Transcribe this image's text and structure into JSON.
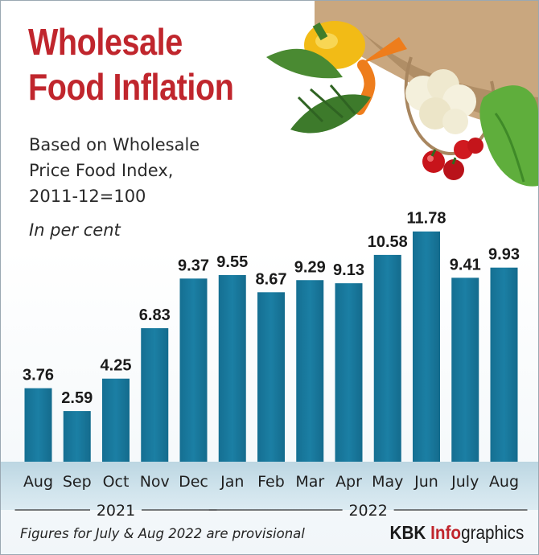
{
  "title_lines": [
    "Wholesale",
    "Food Inflation"
  ],
  "subtitle_lines": [
    "Based on Wholesale",
    "Price Food Index,",
    "2011-12=100"
  ],
  "unit_label": "In per cent",
  "footnote": "Figures for July & Aug 2022 are provisional",
  "brand": {
    "part1": "KBK ",
    "part2": "Info",
    "part3": "graphics"
  },
  "colors": {
    "title": "#c0262d",
    "bar": "#1b7fa4",
    "text": "#1a1a1a"
  },
  "chart_data": {
    "type": "bar",
    "categories": [
      "Aug",
      "Sep",
      "Oct",
      "Nov",
      "Dec",
      "Jan",
      "Feb",
      "Mar",
      "Apr",
      "May",
      "Jun",
      "July",
      "Aug"
    ],
    "values": [
      3.76,
      2.59,
      4.25,
      6.83,
      9.37,
      9.55,
      8.67,
      9.29,
      9.13,
      10.58,
      11.78,
      9.41,
      9.93
    ],
    "value_labels": [
      "3.76",
      "2.59",
      "4.25",
      "6.83",
      "9.37",
      "9.55",
      "8.67",
      "9.29",
      "9.13",
      "10.58",
      "11.78",
      "9.41",
      "9.93"
    ],
    "year_groups": [
      {
        "label": "2021",
        "first": 0,
        "last": 4
      },
      {
        "label": "2022",
        "first": 5,
        "last": 12
      }
    ],
    "ylim": [
      0,
      12
    ],
    "grid": false,
    "legend": "none"
  }
}
